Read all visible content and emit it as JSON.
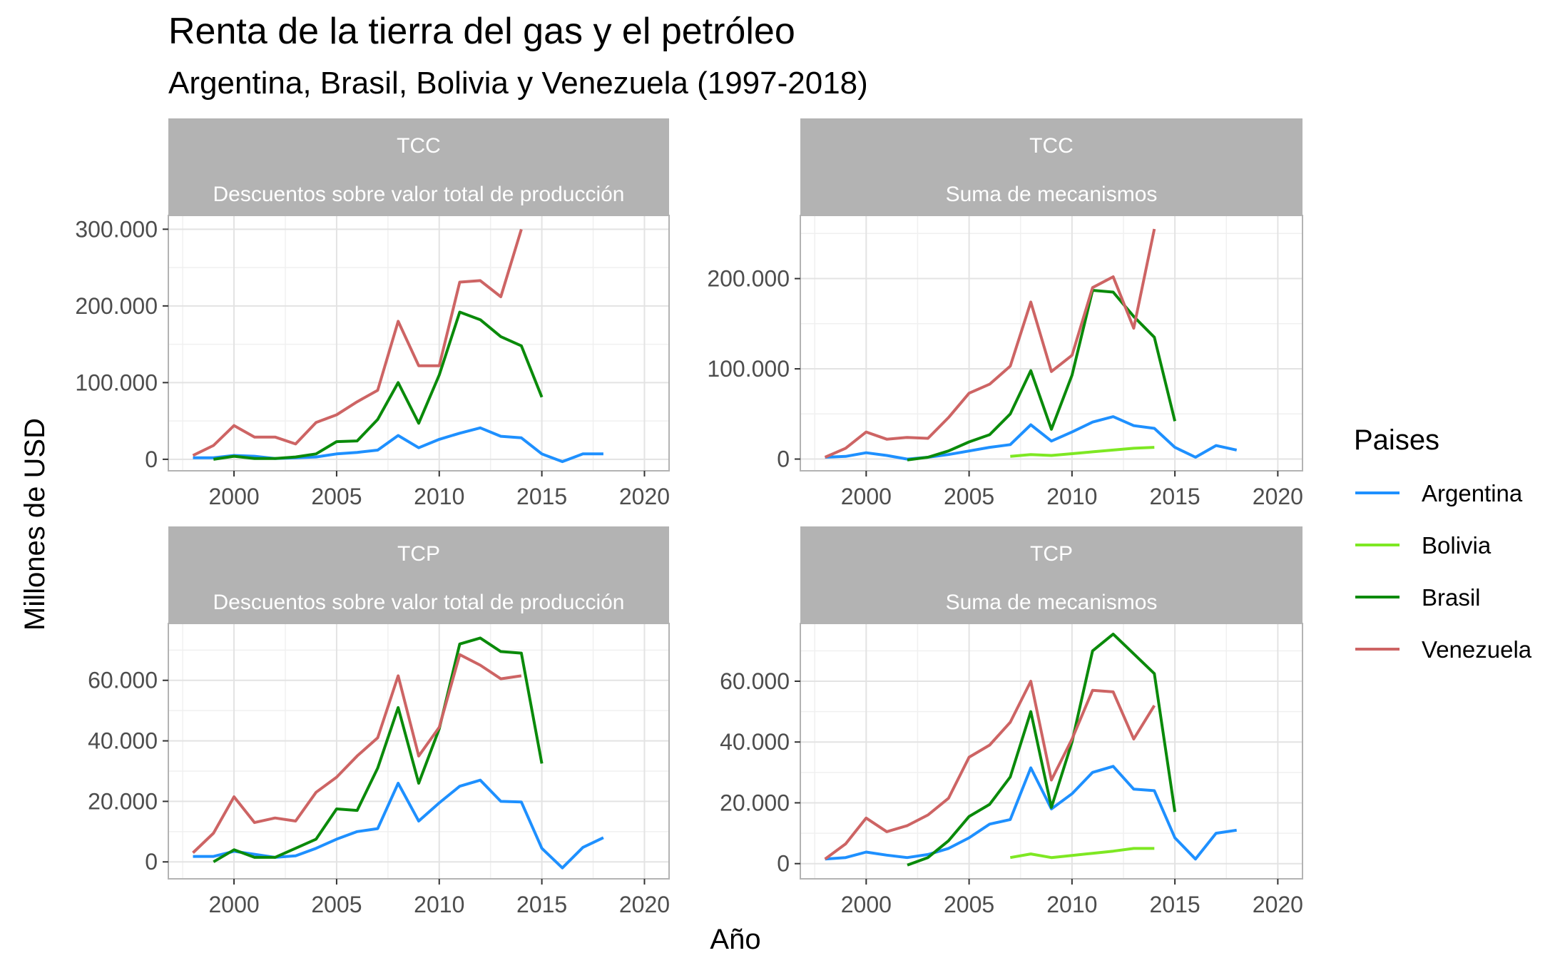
{
  "title": "Renta de la tierra del gas y el petróleo",
  "subtitle": "Argentina, Brasil, Bolivia y Venezuela (1997-2018)",
  "xlabel": "Año",
  "ylabel": "Millones de USD",
  "legend": {
    "title": "Paises",
    "placement": "right",
    "items": [
      {
        "name": "Argentina",
        "color": "#1e90ff"
      },
      {
        "name": "Bolivia",
        "color": "#7ee823"
      },
      {
        "name": "Brasil",
        "color": "#0a8a0a"
      },
      {
        "name": "Venezuela",
        "color": "#cd6464"
      }
    ]
  },
  "chart_data": [
    {
      "type": "line",
      "strip": [
        "TCC",
        "Descuentos sobre valor total de producción"
      ],
      "xlim": [
        1996.8,
        2021.2
      ],
      "ylim": [
        -15000,
        318000
      ],
      "xticks": [
        2000,
        2005,
        2010,
        2015,
        2020
      ],
      "yticks": [
        0,
        100000,
        200000,
        300000
      ],
      "ytick_labels": [
        "0",
        "100.000",
        "200.000",
        "300.000"
      ],
      "grid": true,
      "series": [
        {
          "name": "Argentina",
          "x": [
            1998,
            1999,
            2000,
            2001,
            2002,
            2003,
            2004,
            2005,
            2006,
            2007,
            2008,
            2009,
            2010,
            2011,
            2012,
            2013,
            2014,
            2015,
            2016,
            2017,
            2018
          ],
          "y": [
            2000,
            2000,
            5000,
            4000,
            1000,
            2000,
            3000,
            7000,
            9000,
            12000,
            31000,
            15000,
            26000,
            34000,
            41000,
            30000,
            28000,
            7000,
            -3000,
            7000,
            7000
          ]
        },
        {
          "name": "Brasil",
          "x": [
            1999,
            2000,
            2001,
            2002,
            2003,
            2004,
            2005,
            2006,
            2007,
            2008,
            2009,
            2010,
            2011,
            2012,
            2013,
            2014,
            2015
          ],
          "y": [
            0,
            4000,
            1000,
            1000,
            3000,
            7000,
            23000,
            24000,
            52000,
            100000,
            47000,
            110000,
            192000,
            182000,
            160000,
            148000,
            81000
          ]
        },
        {
          "name": "Venezuela",
          "x": [
            1998,
            1999,
            2000,
            2001,
            2002,
            2003,
            2004,
            2005,
            2006,
            2007,
            2008,
            2009,
            2010,
            2011,
            2012,
            2013,
            2014
          ],
          "y": [
            5000,
            18000,
            44000,
            29000,
            29000,
            20000,
            48000,
            58000,
            75000,
            90000,
            180000,
            122000,
            122000,
            231000,
            233000,
            212000,
            300000
          ]
        }
      ]
    },
    {
      "type": "line",
      "strip": [
        "TCC",
        "Suma de mecanismos"
      ],
      "xlim": [
        1996.8,
        2021.2
      ],
      "ylim": [
        -13000,
        270000
      ],
      "xticks": [
        2000,
        2005,
        2010,
        2015,
        2020
      ],
      "yticks": [
        0,
        100000,
        200000
      ],
      "ytick_labels": [
        "0",
        "100.000",
        "200.000"
      ],
      "grid": true,
      "series": [
        {
          "name": "Argentina",
          "x": [
            1998,
            1999,
            2000,
            2001,
            2002,
            2003,
            2004,
            2005,
            2006,
            2007,
            2008,
            2009,
            2010,
            2011,
            2012,
            2013,
            2014,
            2015,
            2016,
            2017,
            2018
          ],
          "y": [
            2000,
            3000,
            7000,
            4000,
            0,
            2000,
            5000,
            9000,
            13000,
            16000,
            38000,
            20000,
            30000,
            41000,
            47000,
            37000,
            34000,
            13000,
            2000,
            15000,
            10000
          ]
        },
        {
          "name": "Bolivia",
          "x": [
            2007,
            2008,
            2009,
            2010,
            2011,
            2012,
            2013,
            2014
          ],
          "y": [
            3000,
            5000,
            4000,
            6000,
            8000,
            10000,
            12000,
            13000
          ]
        },
        {
          "name": "Brasil",
          "x": [
            2002,
            2003,
            2004,
            2005,
            2006,
            2007,
            2008,
            2009,
            2010,
            2011,
            2012,
            2013,
            2014,
            2015
          ],
          "y": [
            -1000,
            2000,
            9000,
            19000,
            27000,
            50000,
            98000,
            33000,
            93000,
            187000,
            185000,
            158000,
            135000,
            42000
          ]
        },
        {
          "name": "Venezuela",
          "x": [
            1998,
            1999,
            2000,
            2001,
            2002,
            2003,
            2004,
            2005,
            2006,
            2007,
            2008,
            2009,
            2010,
            2011,
            2012,
            2013,
            2014
          ],
          "y": [
            2000,
            12000,
            30000,
            22000,
            24000,
            23000,
            46000,
            73000,
            83000,
            103000,
            174000,
            97000,
            115000,
            190000,
            202000,
            145000,
            255000
          ]
        }
      ]
    },
    {
      "type": "line",
      "strip": [
        "TCP",
        "Descuentos sobre valor total de producción"
      ],
      "xlim": [
        1996.8,
        2021.2
      ],
      "ylim": [
        -5600,
        78800
      ],
      "xticks": [
        2000,
        2005,
        2010,
        2015,
        2020
      ],
      "yticks": [
        0,
        20000,
        40000,
        60000
      ],
      "ytick_labels": [
        "0",
        "20.000",
        "40.000",
        "60.000"
      ],
      "grid": true,
      "series": [
        {
          "name": "Argentina",
          "x": [
            1998,
            1999,
            2000,
            2001,
            2002,
            2003,
            2004,
            2005,
            2006,
            2007,
            2008,
            2009,
            2010,
            2011,
            2012,
            2013,
            2014,
            2015,
            2016,
            2017,
            2018
          ],
          "y": [
            1800,
            1800,
            3500,
            2500,
            1500,
            2000,
            4500,
            7500,
            10000,
            11000,
            26000,
            13500,
            19500,
            25000,
            27000,
            20000,
            19800,
            4500,
            -2000,
            4800,
            8000
          ]
        },
        {
          "name": "Brasil",
          "x": [
            1999,
            2000,
            2001,
            2002,
            2003,
            2004,
            2005,
            2006,
            2007,
            2008,
            2009,
            2010,
            2011,
            2012,
            2013,
            2014,
            2015
          ],
          "y": [
            0,
            4000,
            1500,
            1500,
            4500,
            7500,
            17500,
            17000,
            31000,
            51000,
            26000,
            44000,
            72000,
            74000,
            69500,
            69000,
            32500
          ]
        },
        {
          "name": "Venezuela",
          "x": [
            1998,
            1999,
            2000,
            2001,
            2002,
            2003,
            2004,
            2005,
            2006,
            2007,
            2008,
            2009,
            2010,
            2011,
            2012,
            2013,
            2014
          ],
          "y": [
            3000,
            9500,
            21500,
            13000,
            14500,
            13500,
            23000,
            28000,
            35000,
            41000,
            61500,
            35000,
            44500,
            68500,
            65000,
            60500,
            61500
          ]
        }
      ]
    },
    {
      "type": "line",
      "strip": [
        "TCP",
        "Suma de mecanismos"
      ],
      "xlim": [
        1996.8,
        2021.2
      ],
      "ylim": [
        -5000,
        79000
      ],
      "xticks": [
        2000,
        2005,
        2010,
        2015,
        2020
      ],
      "yticks": [
        0,
        20000,
        40000,
        60000
      ],
      "ytick_labels": [
        "0",
        "20.000",
        "40.000",
        "60.000"
      ],
      "grid": true,
      "series": [
        {
          "name": "Argentina",
          "x": [
            1998,
            1999,
            2000,
            2001,
            2002,
            2003,
            2004,
            2005,
            2006,
            2007,
            2008,
            2009,
            2010,
            2011,
            2012,
            2013,
            2014,
            2015,
            2016,
            2017,
            2018
          ],
          "y": [
            1500,
            2000,
            3800,
            2800,
            2000,
            3000,
            5000,
            8500,
            13000,
            14500,
            31500,
            18000,
            23000,
            30000,
            32000,
            24500,
            24000,
            8500,
            1500,
            10000,
            11000
          ]
        },
        {
          "name": "Bolivia",
          "x": [
            2007,
            2008,
            2009,
            2010,
            2011,
            2012,
            2013,
            2014
          ],
          "y": [
            2000,
            3200,
            2000,
            2700,
            3400,
            4100,
            5000,
            5000
          ]
        },
        {
          "name": "Brasil",
          "x": [
            2002,
            2003,
            2004,
            2005,
            2006,
            2007,
            2008,
            2009,
            2010,
            2011,
            2012,
            2013,
            2014,
            2015
          ],
          "y": [
            -500,
            2000,
            7500,
            15500,
            19500,
            28500,
            50000,
            18500,
            40000,
            70000,
            75500,
            69000,
            62500,
            17000
          ]
        },
        {
          "name": "Venezuela",
          "x": [
            1998,
            1999,
            2000,
            2001,
            2002,
            2003,
            2004,
            2005,
            2006,
            2007,
            2008,
            2009,
            2010,
            2011,
            2012,
            2013,
            2014
          ],
          "y": [
            1500,
            6500,
            15000,
            10500,
            12500,
            16000,
            21500,
            35000,
            39000,
            46500,
            60000,
            27500,
            41000,
            57000,
            56500,
            41000,
            52000
          ]
        }
      ]
    }
  ]
}
